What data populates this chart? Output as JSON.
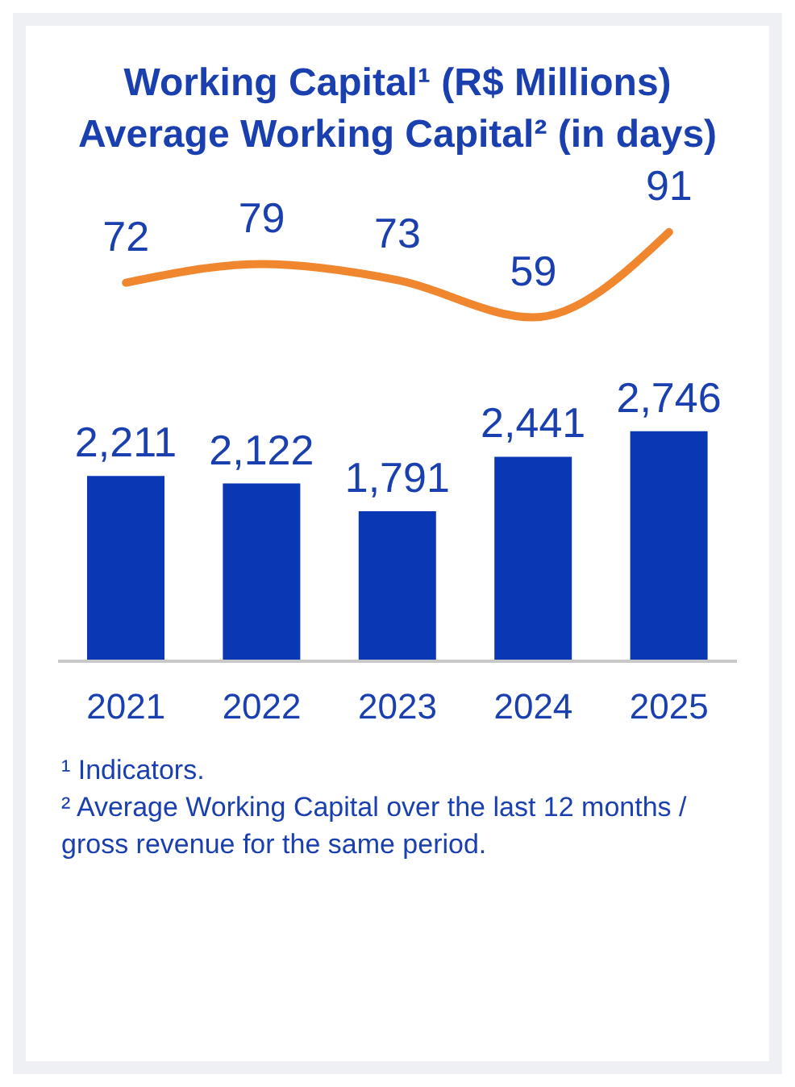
{
  "chart_data": [
    {
      "type": "line",
      "title": "Working Capital¹ (R$ Millions)",
      "subtitle": "Average Working Capital² (in days)",
      "categories": [
        null,
        null,
        null,
        null,
        null
      ],
      "series": [
        {
          "color": "#f0862e",
          "values": [
            72,
            79,
            73,
            59,
            91
          ],
          "value_labels": [
            "72",
            "79",
            "73",
            "59",
            "91"
          ]
        }
      ],
      "tick_labels": false,
      "marker": "none",
      "line_style": "solid"
    },
    {
      "type": "bar",
      "categories": [
        "2021",
        "2022",
        "2023",
        "2024",
        "2025"
      ],
      "series": [
        {
          "color": "#0a37b4",
          "values": [
            2211,
            2122,
            1791,
            2441,
            2746
          ],
          "value_labels": [
            "2,211",
            "2,122",
            "1,791",
            "2,441",
            "2,746"
          ]
        }
      ],
      "tick_labels": "x",
      "annotations": [
        "¹ Indicators.",
        "² Average Working Capital over the last 12 months / gross revenue for the same period."
      ]
    }
  ]
}
